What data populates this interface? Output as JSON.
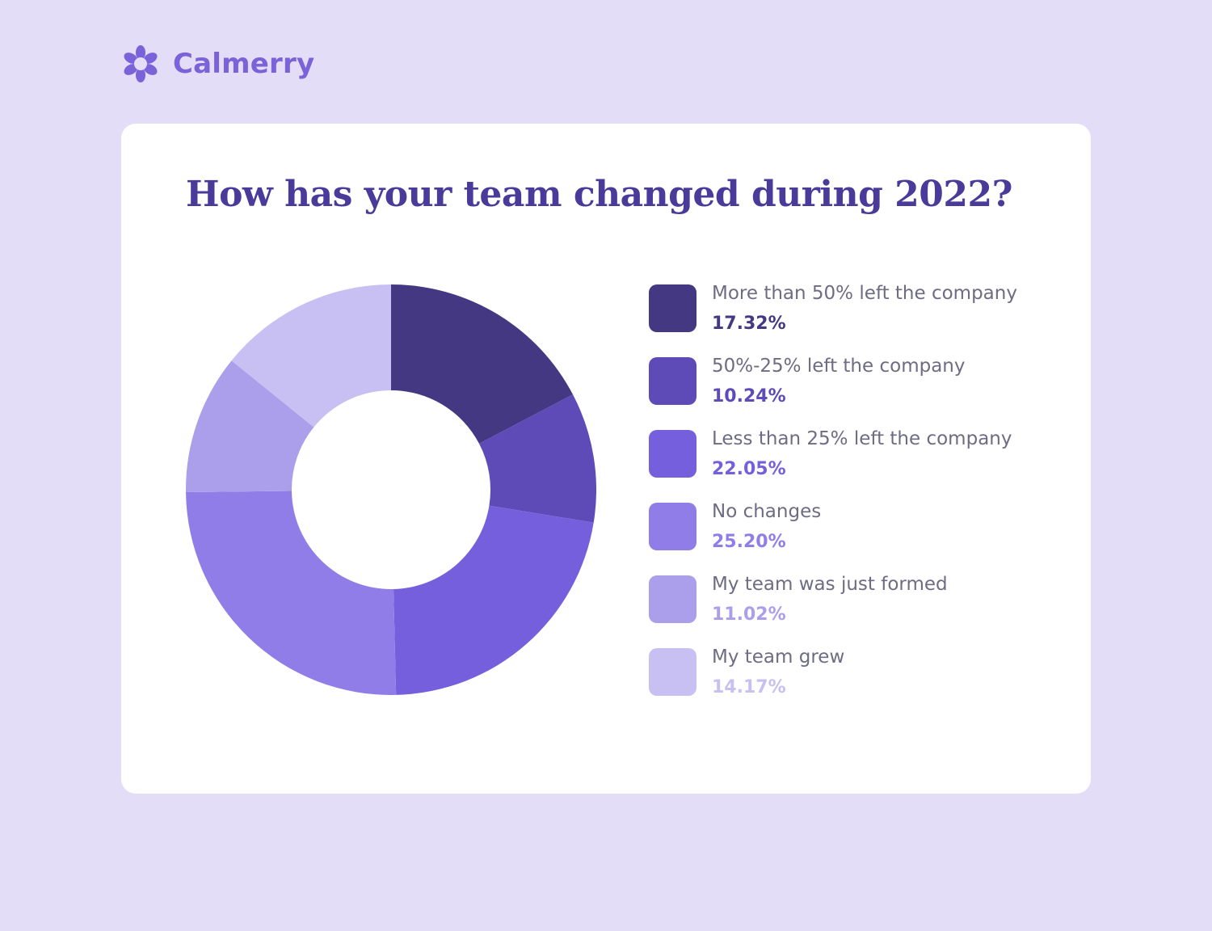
{
  "brand": {
    "name": "Calmerry",
    "logo_icon": "flower-logo-icon",
    "color": "#7a62d9"
  },
  "chart_data": {
    "type": "pie",
    "variant": "donut",
    "title": "How has your team changed during 2022?",
    "legend_position": "right",
    "slices": [
      {
        "label": "More than 50% left the company",
        "value": 17.32,
        "display": "17.32%",
        "color": "#453882"
      },
      {
        "label": "50%-25% left the company",
        "value": 10.24,
        "display": "10.24%",
        "color": "#5e4bb8"
      },
      {
        "label": "Less than 25% left the company",
        "value": 22.05,
        "display": "22.05%",
        "color": "#765fdc"
      },
      {
        "label": "No changes",
        "value": 25.2,
        "display": "25.20%",
        "color": "#917de8"
      },
      {
        "label": "My team was just formed",
        "value": 11.02,
        "display": "11.02%",
        "color": "#ab9fec"
      },
      {
        "label": "My team grew",
        "value": 14.17,
        "display": "14.17%",
        "color": "#c8bff2"
      }
    ]
  }
}
